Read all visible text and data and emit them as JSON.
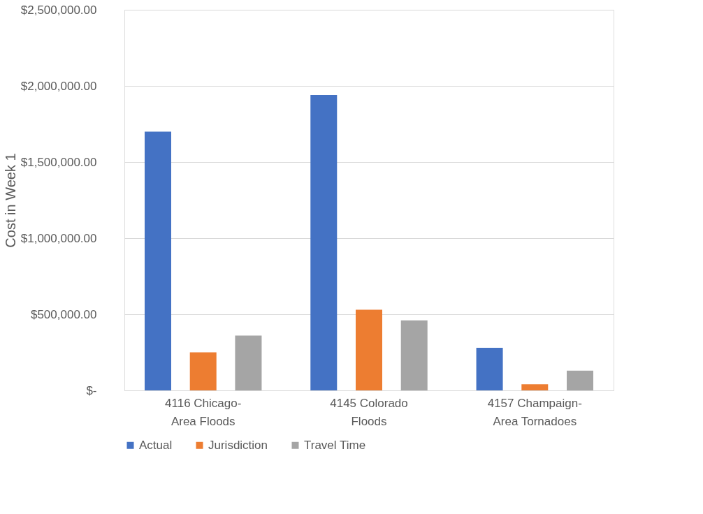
{
  "chart_data": {
    "type": "bar",
    "ylabel": "Cost in Week 1",
    "categories": [
      "4116 Chicago-\nArea Floods",
      "4145 Colorado\nFloods",
      "4157 Champaign-\nArea Tornadoes"
    ],
    "series": [
      {
        "name": "Actual",
        "color": "#4472c4",
        "values": [
          1700000,
          1940000,
          280000
        ]
      },
      {
        "name": "Jurisdiction",
        "color": "#ed7d31",
        "values": [
          250000,
          530000,
          40000
        ]
      },
      {
        "name": "Travel Time",
        "color": "#a5a5a5",
        "values": [
          360000,
          460000,
          130000
        ]
      }
    ],
    "ylim": [
      0,
      2500000
    ],
    "yticks": [
      {
        "value": 0,
        "label": "$-"
      },
      {
        "value": 500000,
        "label": "$500,000.00"
      },
      {
        "value": 1000000,
        "label": "$1,000,000.00"
      },
      {
        "value": 1500000,
        "label": "$1,500,000.00"
      },
      {
        "value": 2000000,
        "label": "$2,000,000.00"
      },
      {
        "value": 2500000,
        "label": "$2,500,000.00"
      }
    ],
    "grid": "y",
    "legend": "bottom"
  }
}
